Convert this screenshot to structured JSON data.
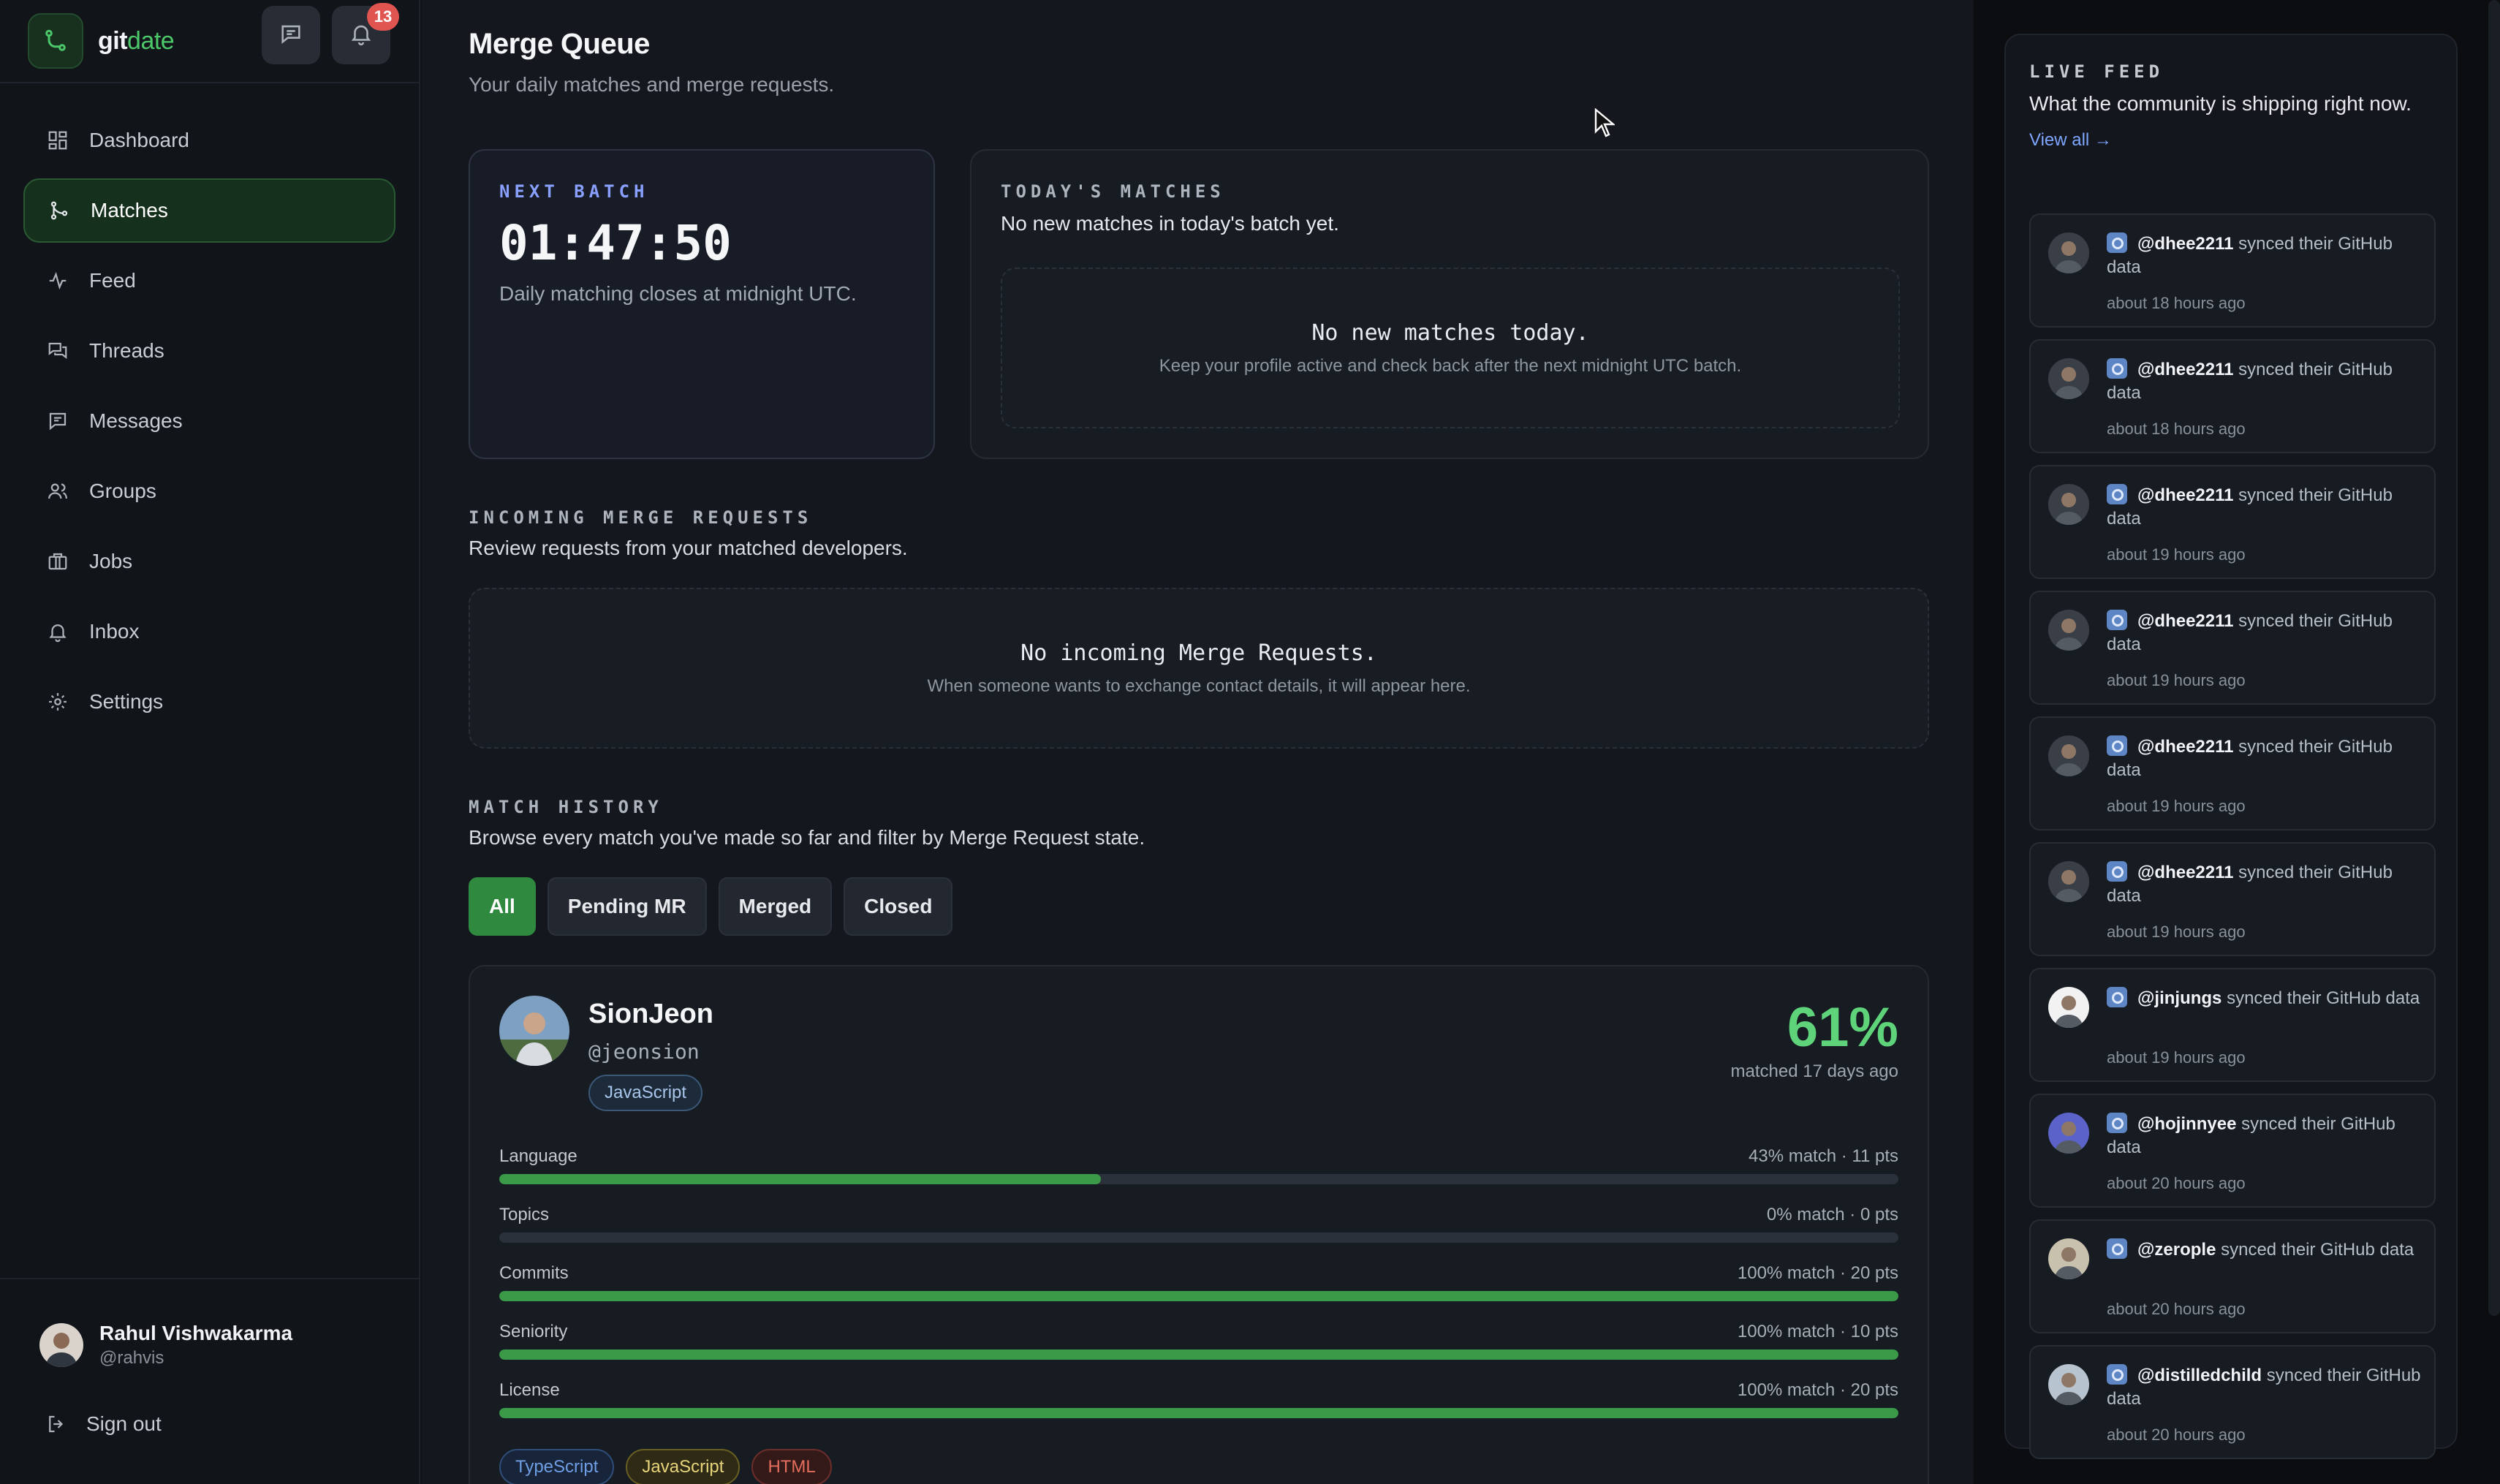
{
  "app": {
    "name_prefix": "git",
    "name_suffix": "date",
    "notification_count": "13"
  },
  "sidebar": {
    "items": [
      {
        "label": "Dashboard",
        "icon": "grid-icon"
      },
      {
        "label": "Matches",
        "icon": "git-merge-icon"
      },
      {
        "label": "Feed",
        "icon": "activity-icon"
      },
      {
        "label": "Threads",
        "icon": "threads-icon"
      },
      {
        "label": "Messages",
        "icon": "message-icon"
      },
      {
        "label": "Groups",
        "icon": "users-icon"
      },
      {
        "label": "Jobs",
        "icon": "briefcase-icon"
      },
      {
        "label": "Inbox",
        "icon": "bell-icon"
      },
      {
        "label": "Settings",
        "icon": "gear-icon"
      }
    ],
    "user": {
      "name": "Rahul Vishwakarma",
      "handle": "@rahvis"
    },
    "signout_label": "Sign out"
  },
  "header": {
    "title": "Merge Queue",
    "subtitle": "Your daily matches and merge requests."
  },
  "next_batch": {
    "label": "NEXT BATCH",
    "countdown": "01:47:50",
    "note": "Daily matching closes at midnight UTC."
  },
  "todays_matches": {
    "label": "TODAY'S MATCHES",
    "desc": "No new matches in today's batch yet.",
    "empty_title": "No new matches today.",
    "empty_sub": "Keep your profile active and check back after the next midnight UTC batch."
  },
  "incoming": {
    "label": "INCOMING MERGE REQUESTS",
    "desc": "Review requests from your matched developers.",
    "empty_title": "No incoming Merge Requests.",
    "empty_sub": "When someone wants to exchange contact details, it will appear here."
  },
  "history": {
    "label": "MATCH HISTORY",
    "desc": "Browse every match you've made so far and filter by Merge Request state.",
    "filters": [
      "All",
      "Pending MR",
      "Merged",
      "Closed"
    ],
    "active_filter": "All"
  },
  "match": {
    "name": "SionJeon",
    "handle": "@jeonsion",
    "primary_language": "JavaScript",
    "percent": "61%",
    "when": "matched 17 days ago",
    "metrics": [
      {
        "label": "Language",
        "value": "43% match · 11 pts",
        "fraction": 0.43
      },
      {
        "label": "Topics",
        "value": "0% match · 0 pts",
        "fraction": 0
      },
      {
        "label": "Commits",
        "value": "100% match · 20 pts",
        "fraction": 1
      },
      {
        "label": "Seniority",
        "value": "100% match · 10 pts",
        "fraction": 1
      },
      {
        "label": "License",
        "value": "100% match · 20 pts",
        "fraction": 1
      }
    ],
    "tags": [
      "TypeScript",
      "JavaScript",
      "HTML"
    ]
  },
  "live_feed": {
    "label": "LIVE FEED",
    "desc": "What the community is shipping right now.",
    "view_all": "View all →",
    "items": [
      {
        "user": "@dhee2211",
        "action": "synced their GitHub data",
        "time": "about 18 hours ago"
      },
      {
        "user": "@dhee2211",
        "action": "synced their GitHub data",
        "time": "about 18 hours ago"
      },
      {
        "user": "@dhee2211",
        "action": "synced their GitHub data",
        "time": "about 19 hours ago"
      },
      {
        "user": "@dhee2211",
        "action": "synced their GitHub data",
        "time": "about 19 hours ago"
      },
      {
        "user": "@dhee2211",
        "action": "synced their GitHub data",
        "time": "about 19 hours ago"
      },
      {
        "user": "@dhee2211",
        "action": "synced their GitHub data",
        "time": "about 19 hours ago"
      },
      {
        "user": "@jinjungs",
        "action": "synced their GitHub data",
        "time": "about 19 hours ago"
      },
      {
        "user": "@hojinnyee",
        "action": "synced their GitHub data",
        "time": "about 20 hours ago"
      },
      {
        "user": "@zerople",
        "action": "synced their GitHub data",
        "time": "about 20 hours ago"
      },
      {
        "user": "@distilledchild",
        "action": "synced their GitHub data",
        "time": "about 20 hours ago"
      }
    ]
  },
  "colors": {
    "accent_green": "#3a9a48",
    "match_percent": "#5fd37a",
    "badge_red": "#e0554f",
    "link_blue": "#7ea6ff"
  }
}
